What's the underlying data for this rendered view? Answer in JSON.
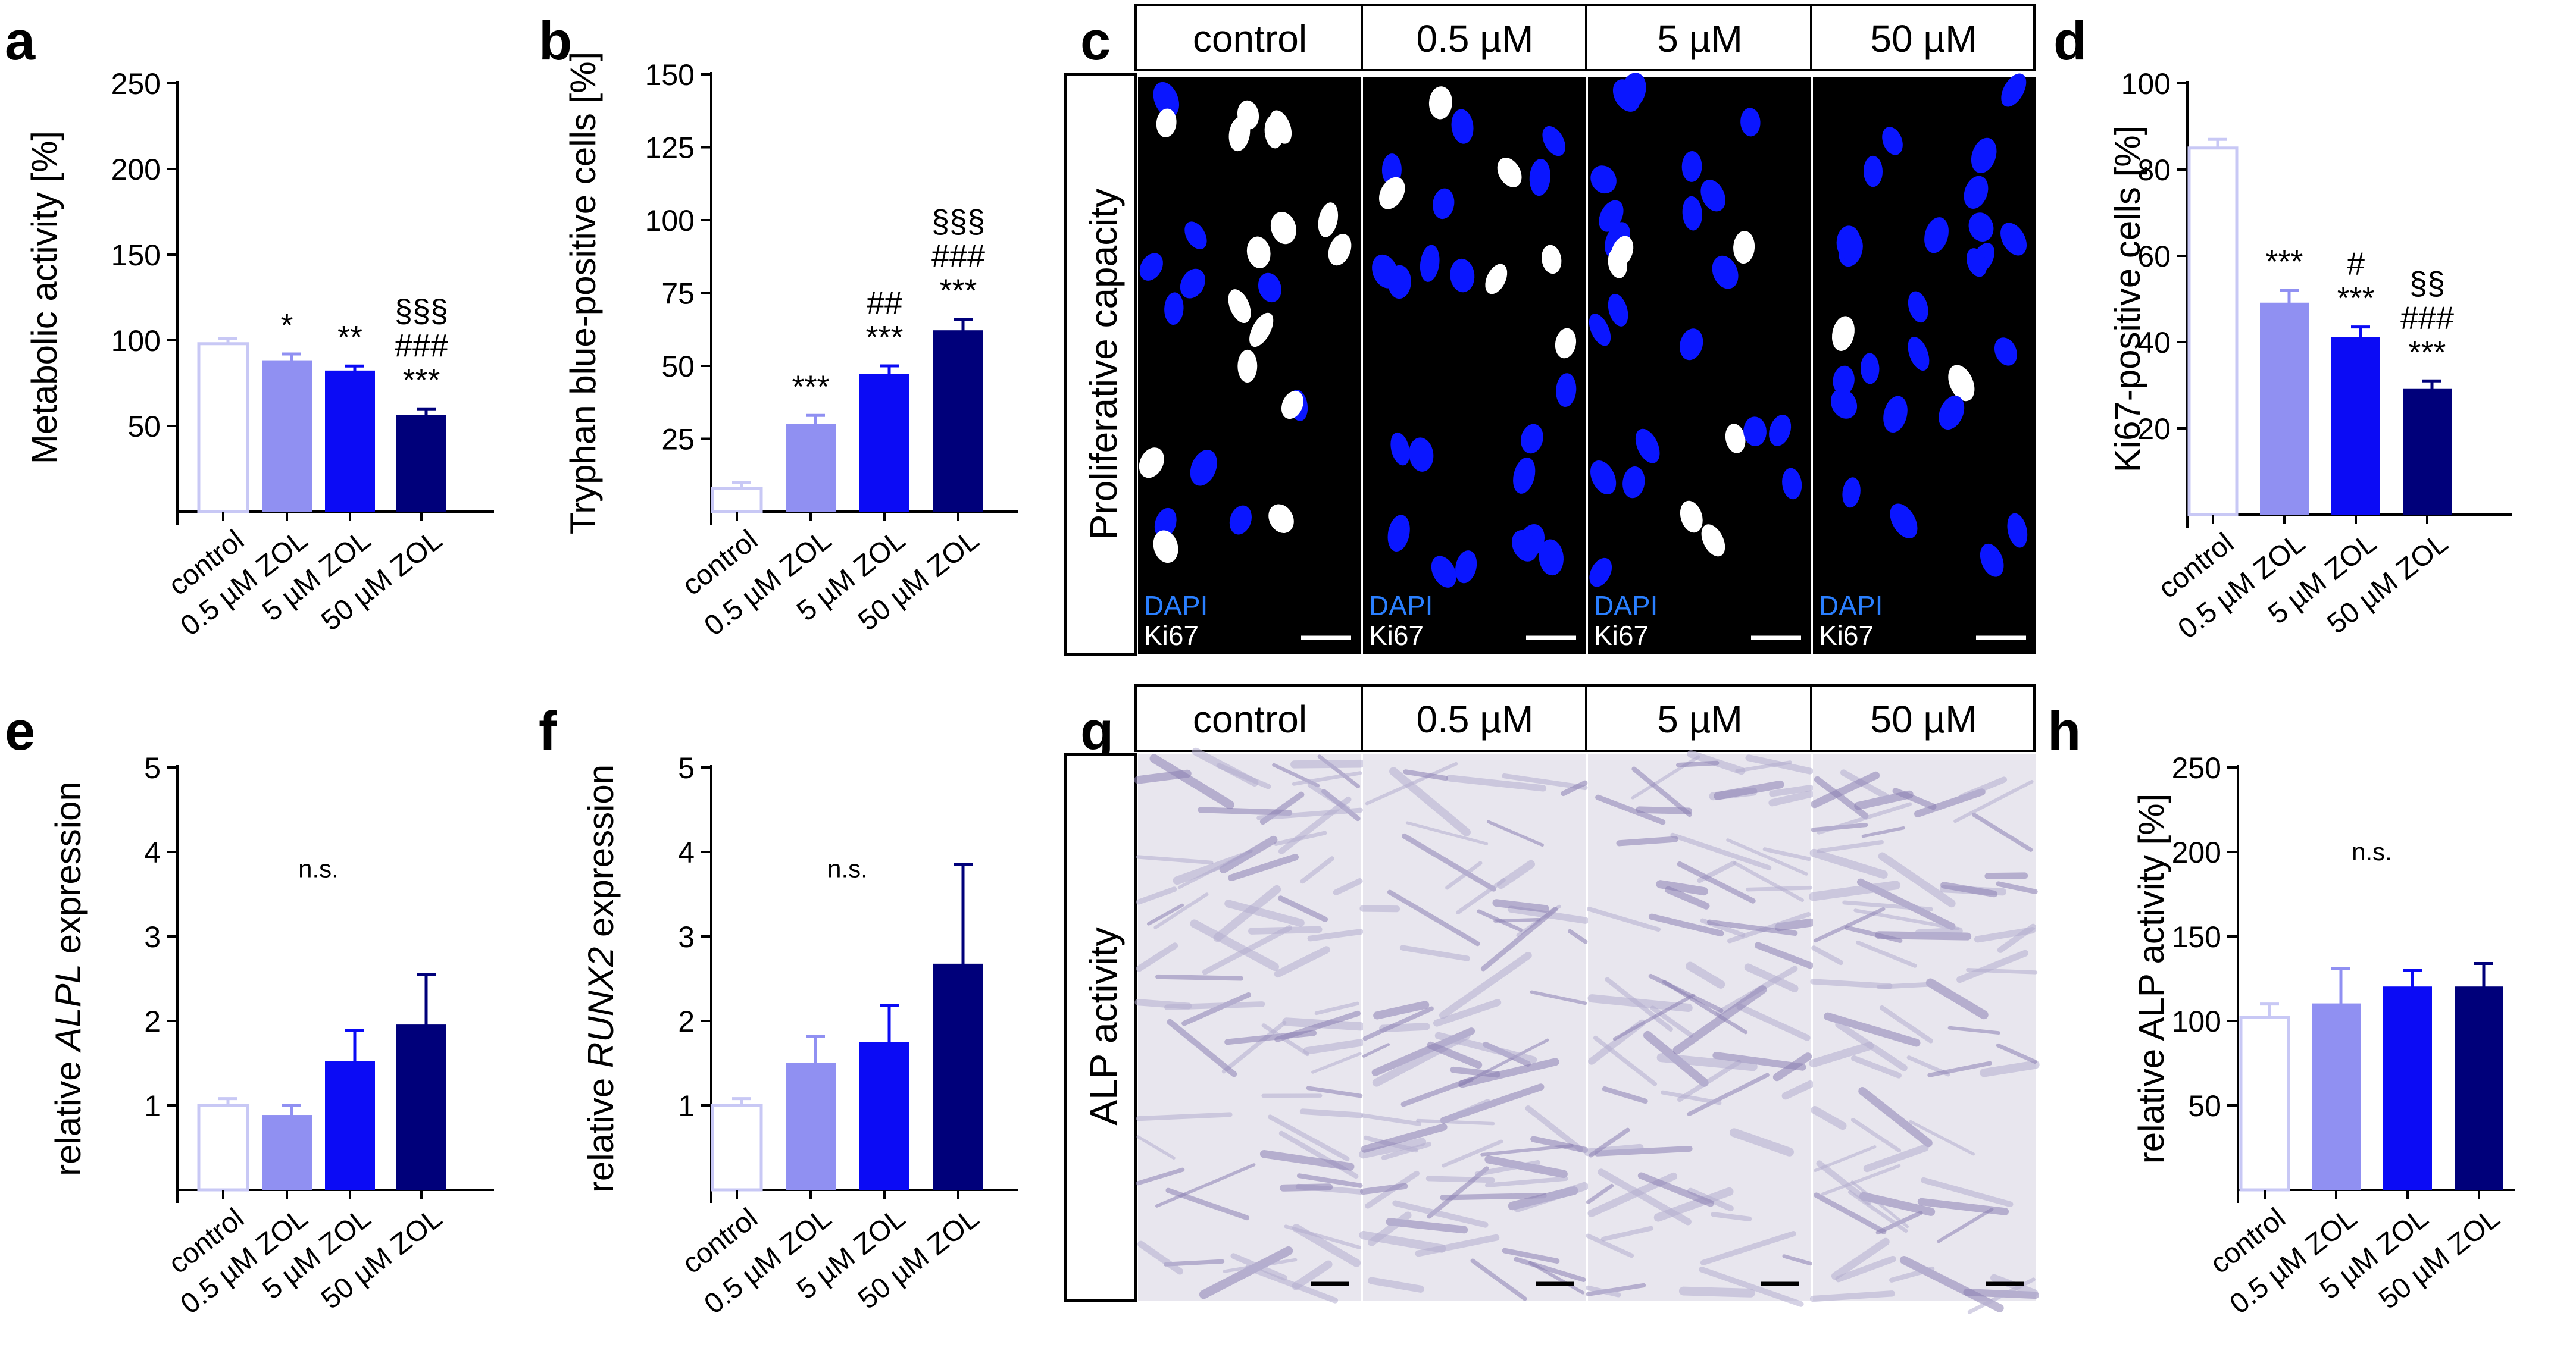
{
  "figure": {
    "micro_c": {
      "row_label": "Proliferative capacity",
      "columns": [
        "control",
        "0.5 µM",
        "5 µM",
        "50 µM"
      ],
      "stain_labels": [
        "DAPI",
        "Ki67"
      ]
    },
    "micro_g": {
      "row_label": "ALP activity",
      "columns": [
        "control",
        "0.5 µM",
        "5 µM",
        "50 µM"
      ]
    }
  },
  "colors": {
    "control": "#c8c8f5",
    "low": "#9090f2",
    "mid": "#0b0bf5",
    "high": "#00007a",
    "dapi": "#2a7fff",
    "nuclei": "#0a16ff",
    "ki67": "#ffffff"
  },
  "chart_data": [
    {
      "panel": "a",
      "type": "bar",
      "categories": [
        "control",
        "0.5 µM ZOL",
        "5 µM ZOL",
        "50 µM ZOL"
      ],
      "values": [
        98,
        88,
        82,
        56
      ],
      "errors": [
        3,
        4,
        3,
        4
      ],
      "ylabel": "Metabolic activity [%]",
      "ylim": [
        0,
        250
      ],
      "yticks": [
        50,
        100,
        150,
        200,
        250
      ],
      "annotations": [
        [],
        [
          "*"
        ],
        [
          "**"
        ],
        [
          "§§§",
          "###",
          "***"
        ]
      ]
    },
    {
      "panel": "b",
      "type": "bar",
      "categories": [
        "control",
        "0.5 µM ZOL",
        "5 µM ZOL",
        "50 µM ZOL"
      ],
      "values": [
        8,
        30,
        47,
        62
      ],
      "errors": [
        2,
        3,
        3,
        4
      ],
      "ylabel": "Tryphan blue-positive cells [%]",
      "ylim": [
        0,
        150
      ],
      "yticks": [
        25,
        50,
        75,
        100,
        125,
        150
      ],
      "annotations": [
        [],
        [
          "***"
        ],
        [
          "##",
          "***"
        ],
        [
          "§§§",
          "###",
          "***"
        ]
      ]
    },
    {
      "panel": "d",
      "type": "bar",
      "categories": [
        "control",
        "0.5 µM ZOL",
        "5 µM ZOL",
        "50 µM ZOL"
      ],
      "values": [
        85,
        49,
        41,
        29
      ],
      "errors": [
        2,
        3,
        2.5,
        2
      ],
      "ylabel": "Ki67-positive cells [%]",
      "ylim": [
        0,
        100
      ],
      "yticks": [
        20,
        40,
        60,
        80,
        100
      ],
      "annotations": [
        [],
        [
          "***"
        ],
        [
          "#",
          "***"
        ],
        [
          "§§",
          "###",
          "***"
        ]
      ]
    },
    {
      "panel": "e",
      "type": "bar",
      "categories": [
        "control",
        "0.5 µM ZOL",
        "5 µM ZOL",
        "50 µM ZOL"
      ],
      "values": [
        1.0,
        0.88,
        1.52,
        1.95
      ],
      "errors": [
        0.08,
        0.12,
        0.37,
        0.6
      ],
      "ylabel": "relative ALPL expression",
      "ylim": [
        0,
        5
      ],
      "yticks": [
        1,
        2,
        3,
        4,
        5
      ],
      "annotation_center": "n.s."
    },
    {
      "panel": "f",
      "type": "bar",
      "categories": [
        "control",
        "0.5 µM ZOL",
        "5 µM ZOL",
        "50 µM ZOL"
      ],
      "values": [
        1.0,
        1.5,
        1.74,
        2.67
      ],
      "errors": [
        0.08,
        0.32,
        0.44,
        1.18
      ],
      "ylabel": "relative RUNX2 expression",
      "ylim": [
        0,
        5
      ],
      "yticks": [
        1,
        2,
        3,
        4,
        5
      ],
      "annotation_center": "n.s."
    },
    {
      "panel": "h",
      "type": "bar",
      "categories": [
        "control",
        "0.5 µM ZOL",
        "5 µM ZOL",
        "50 µM ZOL"
      ],
      "values": [
        102,
        110,
        120,
        120
      ],
      "errors": [
        8,
        21,
        10,
        14
      ],
      "ylabel": "relative ALP activity [%]",
      "ylim": [
        0,
        250
      ],
      "yticks": [
        50,
        100,
        150,
        200,
        250
      ],
      "annotation_center": "n.s."
    }
  ]
}
